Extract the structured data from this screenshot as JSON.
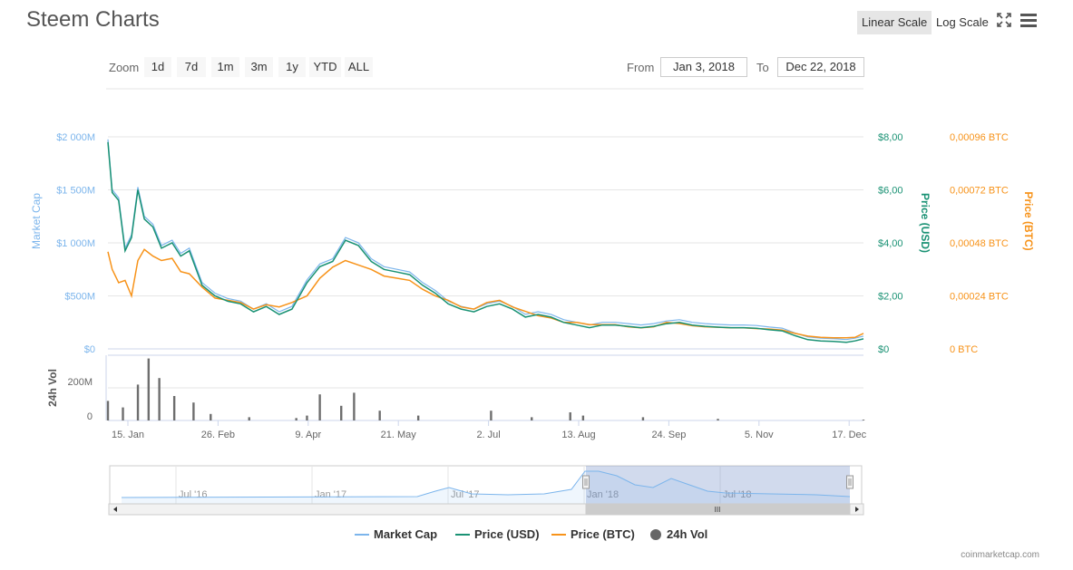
{
  "page": {
    "title": "Steem Charts",
    "credits": "coinmarketcap.com"
  },
  "toolbar": {
    "linear_label": "Linear Scale",
    "log_label": "Log Scale",
    "fullscreen_icon": "expand-icon",
    "menu_icon": "hamburger-menu-icon"
  },
  "zoom": {
    "label": "Zoom",
    "buttons": [
      "1d",
      "7d",
      "1m",
      "3m",
      "1y",
      "YTD",
      "ALL"
    ]
  },
  "range": {
    "from_label": "From",
    "from_value": "Jan 3, 2018",
    "to_label": "To",
    "to_value": "Dec 22, 2018"
  },
  "chart_data": {
    "type": "line",
    "x_ticks": [
      "15. Jan",
      "26. Feb",
      "9. Apr",
      "21. May",
      "2. Jul",
      "13. Aug",
      "24. Sep",
      "5. Nov",
      "17. Dec"
    ],
    "axes": {
      "market_cap": {
        "title": "Market Cap",
        "ticks": [
          "$0",
          "$500M",
          "$1 000M",
          "$1 500M",
          "$2 000M"
        ],
        "range": [
          0,
          2000
        ],
        "unit": "M USD"
      },
      "price_usd": {
        "title": "Price (USD)",
        "ticks": [
          "$0",
          "$2,00",
          "$4,00",
          "$6,00",
          "$8,00"
        ],
        "range": [
          0,
          8
        ]
      },
      "price_btc": {
        "title": "Price (BTC)",
        "ticks": [
          "0 BTC",
          "0,00024 BTC",
          "0,00048 BTC",
          "0,00072 BTC",
          "0,00096 BTC"
        ],
        "range": [
          0,
          0.00096
        ]
      },
      "volume": {
        "title": "24h Vol",
        "ticks": [
          "0",
          "200M"
        ],
        "range": [
          0,
          400
        ]
      }
    },
    "series": [
      {
        "name": "Market Cap",
        "axis": "market_cap",
        "color": "#7cb5ec"
      },
      {
        "name": "Price (USD)",
        "axis": "price_usd",
        "color": "#1a9274",
        "x": [
          "2018-01-03",
          "2018-01-05",
          "2018-01-08",
          "2018-01-11",
          "2018-01-14",
          "2018-01-17",
          "2018-01-20",
          "2018-01-24",
          "2018-01-28",
          "2018-02-02",
          "2018-02-06",
          "2018-02-10",
          "2018-02-16",
          "2018-02-22",
          "2018-02-28",
          "2018-03-06",
          "2018-03-12",
          "2018-03-18",
          "2018-03-24",
          "2018-03-30",
          "2018-04-06",
          "2018-04-12",
          "2018-04-18",
          "2018-04-24",
          "2018-04-30",
          "2018-05-06",
          "2018-05-12",
          "2018-05-18",
          "2018-05-24",
          "2018-05-30",
          "2018-06-05",
          "2018-06-11",
          "2018-06-17",
          "2018-06-23",
          "2018-06-29",
          "2018-07-05",
          "2018-07-11",
          "2018-07-17",
          "2018-07-23",
          "2018-07-29",
          "2018-08-04",
          "2018-08-10",
          "2018-08-16",
          "2018-08-22",
          "2018-08-28",
          "2018-09-03",
          "2018-09-09",
          "2018-09-15",
          "2018-09-21",
          "2018-09-27",
          "2018-10-03",
          "2018-10-09",
          "2018-10-15",
          "2018-10-21",
          "2018-10-27",
          "2018-11-02",
          "2018-11-08",
          "2018-11-14",
          "2018-11-20",
          "2018-11-26",
          "2018-12-02",
          "2018-12-08",
          "2018-12-14",
          "2018-12-18",
          "2018-12-22"
        ],
        "y": [
          7.8,
          5.9,
          5.6,
          3.7,
          4.2,
          6.0,
          4.9,
          4.6,
          3.8,
          4.0,
          3.5,
          3.7,
          2.4,
          2.0,
          1.8,
          1.7,
          1.4,
          1.6,
          1.3,
          1.5,
          2.5,
          3.1,
          3.3,
          4.1,
          3.9,
          3.3,
          3.0,
          2.9,
          2.8,
          2.4,
          2.1,
          1.7,
          1.5,
          1.4,
          1.6,
          1.7,
          1.5,
          1.2,
          1.3,
          1.2,
          1.0,
          0.9,
          0.8,
          0.9,
          0.9,
          0.85,
          0.8,
          0.85,
          0.95,
          1.0,
          0.9,
          0.85,
          0.82,
          0.8,
          0.8,
          0.78,
          0.72,
          0.68,
          0.5,
          0.35,
          0.3,
          0.28,
          0.25,
          0.3,
          0.38
        ]
      },
      {
        "name": "Price (BTC)",
        "axis": "price_btc",
        "color": "#f7931a",
        "x": [
          "2018-01-03",
          "2018-01-05",
          "2018-01-08",
          "2018-01-11",
          "2018-01-14",
          "2018-01-17",
          "2018-01-20",
          "2018-01-24",
          "2018-01-28",
          "2018-02-02",
          "2018-02-06",
          "2018-02-10",
          "2018-02-16",
          "2018-02-22",
          "2018-02-28",
          "2018-03-06",
          "2018-03-12",
          "2018-03-18",
          "2018-03-24",
          "2018-03-30",
          "2018-04-06",
          "2018-04-12",
          "2018-04-18",
          "2018-04-24",
          "2018-04-30",
          "2018-05-06",
          "2018-05-12",
          "2018-05-18",
          "2018-05-24",
          "2018-05-30",
          "2018-06-05",
          "2018-06-11",
          "2018-06-17",
          "2018-06-23",
          "2018-06-29",
          "2018-07-05",
          "2018-07-11",
          "2018-07-17",
          "2018-07-23",
          "2018-07-29",
          "2018-08-04",
          "2018-08-10",
          "2018-08-16",
          "2018-08-22",
          "2018-08-28",
          "2018-09-03",
          "2018-09-09",
          "2018-09-15",
          "2018-09-21",
          "2018-09-27",
          "2018-10-03",
          "2018-10-09",
          "2018-10-15",
          "2018-10-21",
          "2018-10-27",
          "2018-11-02",
          "2018-11-08",
          "2018-11-14",
          "2018-11-20",
          "2018-11-26",
          "2018-12-02",
          "2018-12-08",
          "2018-12-14",
          "2018-12-18",
          "2018-12-22"
        ],
        "y": [
          0.00044,
          0.00036,
          0.0003,
          0.00031,
          0.00024,
          0.0004,
          0.00045,
          0.00042,
          0.0004,
          0.00041,
          0.00035,
          0.00034,
          0.00028,
          0.00023,
          0.00022,
          0.00021,
          0.00018,
          0.0002,
          0.00019,
          0.00021,
          0.00024,
          0.00032,
          0.00037,
          0.0004,
          0.00038,
          0.00036,
          0.00033,
          0.00032,
          0.00031,
          0.00027,
          0.00024,
          0.00022,
          0.00019,
          0.00018,
          0.00021,
          0.00022,
          0.00019,
          0.00017,
          0.00015,
          0.00014,
          0.00012,
          0.00012,
          0.00011,
          0.00011,
          0.00011,
          0.0001,
          9.5e-05,
          0.0001,
          0.00012,
          0.000115,
          0.000105,
          0.0001,
          9.8e-05,
          9.5e-05,
          9.5e-05,
          9.2e-05,
          9e-05,
          8.5e-05,
          7e-05,
          5.8e-05,
          5.2e-05,
          5e-05,
          5e-05,
          5.2e-05,
          7e-05
        ]
      },
      {
        "name": "24h Vol",
        "axis": "volume",
        "color": "#555555",
        "x": [
          "2018-01-03",
          "2018-01-10",
          "2018-01-17",
          "2018-01-22",
          "2018-01-27",
          "2018-02-03",
          "2018-02-12",
          "2018-02-20",
          "2018-03-10",
          "2018-04-01",
          "2018-04-06",
          "2018-04-12",
          "2018-04-22",
          "2018-04-28",
          "2018-05-10",
          "2018-05-28",
          "2018-07-01",
          "2018-07-20",
          "2018-08-07",
          "2018-08-13",
          "2018-09-10",
          "2018-10-15",
          "2018-12-22"
        ],
        "y": [
          120,
          80,
          220,
          380,
          260,
          150,
          110,
          40,
          20,
          15,
          30,
          160,
          90,
          170,
          60,
          30,
          60,
          20,
          50,
          30,
          20,
          10,
          5
        ]
      }
    ]
  },
  "navigator": {
    "labels": [
      "Jul '16",
      "Jan '17",
      "Jul '17",
      "Jan '18",
      "Jul '18"
    ],
    "scroll_grip": "III"
  },
  "legend": {
    "items": [
      {
        "label": "Market Cap",
        "color": "#7cb5ec"
      },
      {
        "label": "Price (USD)",
        "color": "#1a9274"
      },
      {
        "label": "Price (BTC)",
        "color": "#f7931a"
      },
      {
        "label": "24h Vol",
        "color": "#666666"
      }
    ]
  }
}
